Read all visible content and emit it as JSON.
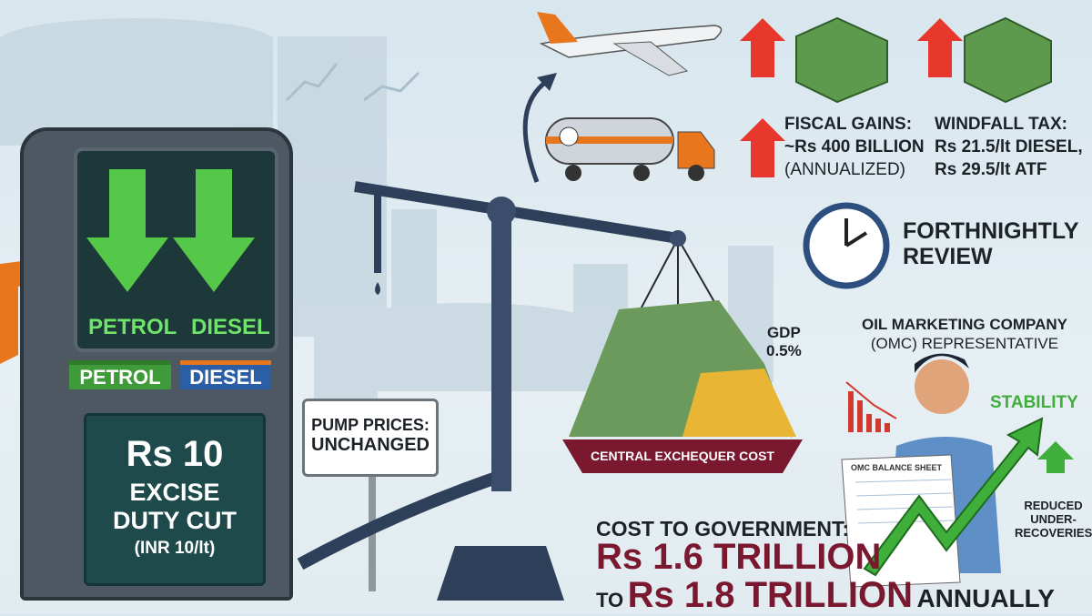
{
  "pump": {
    "screen_left": "PETROL",
    "screen_right": "DIESEL",
    "label_petrol": "PETROL",
    "label_diesel": "DIESEL",
    "amount": "Rs 10",
    "line1": "EXCISE",
    "line2": "DUTY CUT",
    "line3": "(INR 10/lt)"
  },
  "sign": {
    "line1": "PUMP PRICES:",
    "line2": "UNCHANGED"
  },
  "scale": {
    "tray_label": "CENTRAL EXCHEQUER COST",
    "gdp_label": "GDP",
    "gdp_value": "0.5%"
  },
  "fiscal": {
    "title": "FISCAL GAINS:",
    "value": "~Rs 400 BILLION",
    "note": "(ANNUALIZED)"
  },
  "windfall": {
    "title": "WINDFALL TAX:",
    "diesel": "Rs 21.5/lt DIESEL,",
    "atf": "Rs 29.5/lt ATF"
  },
  "review": {
    "line1": "FORTHNIGHTLY",
    "line2": "REVIEW"
  },
  "omc": {
    "line1": "OIL MARKETING COMPANY",
    "line2": "(OMC) REPRESENTATIVE",
    "sheet": "OMC BALANCE SHEET",
    "stability": "STABILITY",
    "reduced1": "REDUCED",
    "reduced2": "UNDER-",
    "reduced3": "RECOVERIES"
  },
  "cost": {
    "heading": "COST TO GOVERNMENT:",
    "low": "Rs 1.6 TRILLION",
    "to": "TO",
    "high": "Rs 1.8 TRILLION",
    "suffix": "ANNUALLY"
  },
  "colors": {
    "up_arrow": "#e8372c",
    "green": "#3fae3a",
    "maroon": "#7a1830",
    "pump_body": "#4d5862",
    "panel": "#1f4a4c"
  }
}
